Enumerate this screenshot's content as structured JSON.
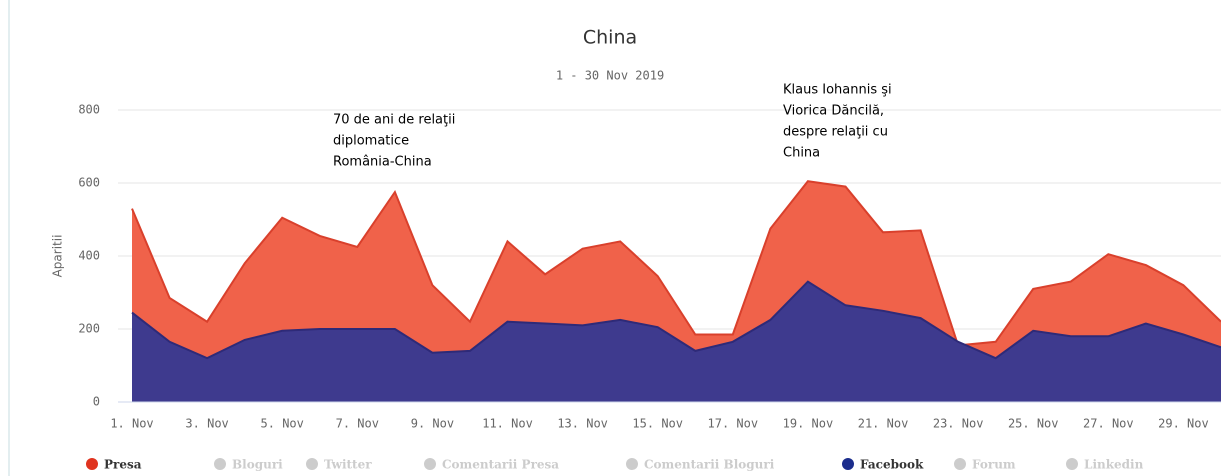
{
  "chart_data": {
    "type": "area",
    "title": "China",
    "subtitle": "1 - 30 Nov 2019",
    "y_axis_label": "Aparitii",
    "categories": [
      "1. Nov",
      null,
      "3. Nov",
      null,
      "5. Nov",
      null,
      "7. Nov",
      null,
      "9. Nov",
      null,
      "11. Nov",
      null,
      "13. Nov",
      null,
      "15. Nov",
      null,
      "17. Nov",
      null,
      "19. Nov",
      null,
      "21. Nov",
      null,
      "23. Nov",
      null,
      "25. Nov",
      null,
      "27. Nov",
      null,
      "29. Nov",
      null
    ],
    "series": [
      {
        "name": "Presa",
        "color": "#f0624a",
        "line_color": "#d9402c",
        "legend_color": "#e0331f",
        "visible": true,
        "values": [
          530,
          285,
          220,
          380,
          505,
          455,
          425,
          575,
          320,
          220,
          440,
          350,
          420,
          440,
          345,
          185,
          185,
          475,
          605,
          590,
          465,
          470,
          155,
          165,
          310,
          330,
          405,
          375,
          320,
          220
        ]
      },
      {
        "name": "Bloguri",
        "visible": false
      },
      {
        "name": "Twitter",
        "visible": false
      },
      {
        "name": "Comentarii Presa",
        "visible": false
      },
      {
        "name": "Comentarii Bloguri",
        "visible": false
      },
      {
        "name": "Facebook",
        "color": "#3e3a8e",
        "line_color": "#2e2a78",
        "legend_color": "#1b2d8c",
        "visible": true,
        "values": [
          245,
          165,
          120,
          170,
          195,
          200,
          200,
          200,
          135,
          140,
          220,
          215,
          210,
          225,
          205,
          140,
          165,
          225,
          330,
          265,
          250,
          230,
          165,
          120,
          195,
          180,
          180,
          215,
          185,
          150
        ]
      },
      {
        "name": "Forum",
        "visible": false
      },
      {
        "name": "Linkedin",
        "visible": false
      }
    ],
    "hidden_color": "#cccccc",
    "ylim": [
      0,
      800
    ],
    "yticks": [
      0,
      200,
      400,
      600,
      800
    ],
    "grid": true,
    "annotations": [
      {
        "lines": [
          "70 de ani de relaţii",
          "diplomatice",
          "România-China"
        ]
      },
      {
        "lines": [
          "Klaus Iohannis şi",
          "Viorica Dăncilă,",
          "despre relaţii cu",
          "China"
        ]
      }
    ]
  }
}
